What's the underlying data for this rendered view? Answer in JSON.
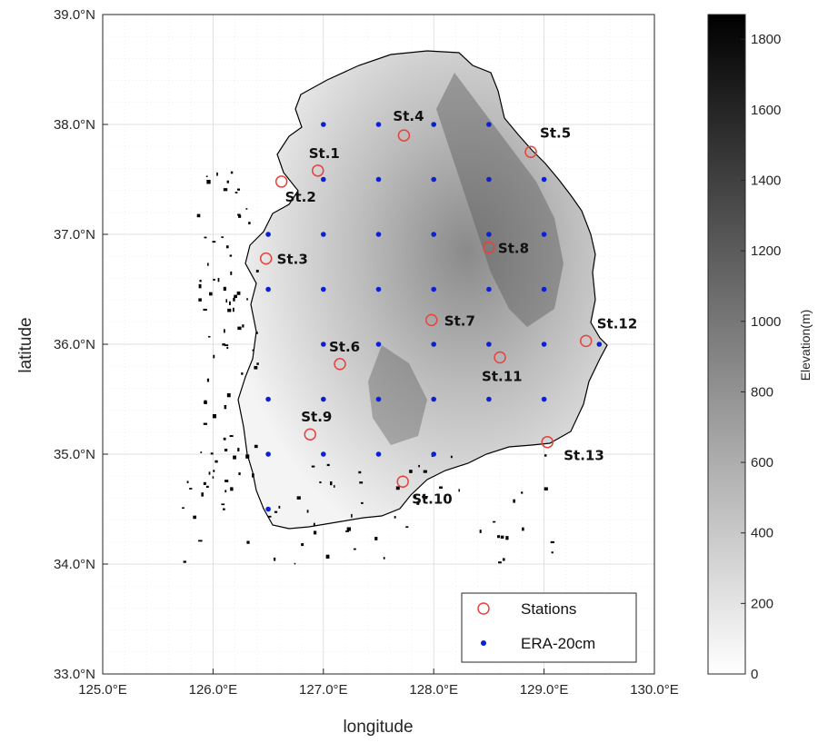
{
  "map": {
    "xlabel": "longitude",
    "ylabel": "latitude",
    "x_ticks": [
      125,
      126,
      127,
      128,
      129,
      130
    ],
    "x_tick_labels": [
      "125.0°E",
      "126.0°E",
      "127.0°E",
      "128.0°E",
      "129.0°E",
      "130.0°E"
    ],
    "y_ticks": [
      33,
      34,
      35,
      36,
      37,
      38,
      39
    ],
    "y_tick_labels": [
      "33.0°N",
      "34.0°N",
      "35.0°N",
      "36.0°N",
      "37.0°N",
      "38.0°N",
      "39.0°N"
    ],
    "lon_range": [
      125,
      130
    ],
    "lat_range": [
      33,
      39
    ],
    "grid": true,
    "minor_grid": true
  },
  "stations": [
    {
      "label": "St.1",
      "lon": 126.95,
      "lat": 37.58
    },
    {
      "label": "St.2",
      "lon": 126.62,
      "lat": 37.48
    },
    {
      "label": "St.3",
      "lon": 126.48,
      "lat": 36.78
    },
    {
      "label": "St.4",
      "lon": 127.73,
      "lat": 37.9
    },
    {
      "label": "St.5",
      "lon": 128.88,
      "lat": 37.75
    },
    {
      "label": "St.6",
      "lon": 127.15,
      "lat": 35.82
    },
    {
      "label": "St.7",
      "lon": 127.98,
      "lat": 36.22
    },
    {
      "label": "St.8",
      "lon": 128.5,
      "lat": 36.88
    },
    {
      "label": "St.9",
      "lon": 126.88,
      "lat": 35.18
    },
    {
      "label": "St.10",
      "lon": 127.72,
      "lat": 34.75
    },
    {
      "label": "St.11",
      "lon": 128.6,
      "lat": 35.88
    },
    {
      "label": "St.12",
      "lon": 129.38,
      "lat": 36.03
    },
    {
      "label": "St.13",
      "lon": 129.03,
      "lat": 35.11
    }
  ],
  "era_points": [
    {
      "lon": 127.0,
      "lat": 38.0
    },
    {
      "lon": 127.5,
      "lat": 38.0
    },
    {
      "lon": 128.0,
      "lat": 38.0
    },
    {
      "lon": 128.5,
      "lat": 38.0
    },
    {
      "lon": 127.0,
      "lat": 37.5
    },
    {
      "lon": 127.5,
      "lat": 37.5
    },
    {
      "lon": 128.0,
      "lat": 37.5
    },
    {
      "lon": 128.5,
      "lat": 37.5
    },
    {
      "lon": 129.0,
      "lat": 37.5
    },
    {
      "lon": 126.5,
      "lat": 37.0
    },
    {
      "lon": 127.0,
      "lat": 37.0
    },
    {
      "lon": 127.5,
      "lat": 37.0
    },
    {
      "lon": 128.0,
      "lat": 37.0
    },
    {
      "lon": 128.5,
      "lat": 37.0
    },
    {
      "lon": 129.0,
      "lat": 37.0
    },
    {
      "lon": 126.5,
      "lat": 36.5
    },
    {
      "lon": 127.0,
      "lat": 36.5
    },
    {
      "lon": 127.5,
      "lat": 36.5
    },
    {
      "lon": 128.0,
      "lat": 36.5
    },
    {
      "lon": 128.5,
      "lat": 36.5
    },
    {
      "lon": 129.0,
      "lat": 36.5
    },
    {
      "lon": 127.0,
      "lat": 36.0
    },
    {
      "lon": 127.5,
      "lat": 36.0
    },
    {
      "lon": 128.0,
      "lat": 36.0
    },
    {
      "lon": 128.5,
      "lat": 36.0
    },
    {
      "lon": 129.0,
      "lat": 36.0
    },
    {
      "lon": 129.5,
      "lat": 36.0
    },
    {
      "lon": 126.5,
      "lat": 35.5
    },
    {
      "lon": 127.0,
      "lat": 35.5
    },
    {
      "lon": 127.5,
      "lat": 35.5
    },
    {
      "lon": 128.0,
      "lat": 35.5
    },
    {
      "lon": 128.5,
      "lat": 35.5
    },
    {
      "lon": 129.0,
      "lat": 35.5
    },
    {
      "lon": 126.5,
      "lat": 35.0
    },
    {
      "lon": 127.0,
      "lat": 35.0
    },
    {
      "lon": 127.5,
      "lat": 35.0
    },
    {
      "lon": 128.0,
      "lat": 35.0
    },
    {
      "lon": 126.5,
      "lat": 34.5
    }
  ],
  "legend": {
    "placement": "bottom-right",
    "stations_label": "Stations",
    "era_label": "ERA-20cm"
  },
  "colorbar": {
    "title": "Elevation(m)",
    "min": 0,
    "max": 1870,
    "ticks": [
      0,
      200,
      400,
      600,
      800,
      1000,
      1200,
      1400,
      1600,
      1800
    ],
    "tick_labels": [
      "0",
      "200",
      "400",
      "600",
      "800",
      "1000",
      "1200",
      "1400",
      "1600",
      "1800"
    ]
  },
  "colors": {
    "station_marker": "#e8413c",
    "era_marker": "#0a1fd6",
    "coastline": "#000000",
    "grid": "#d9d9d9"
  }
}
